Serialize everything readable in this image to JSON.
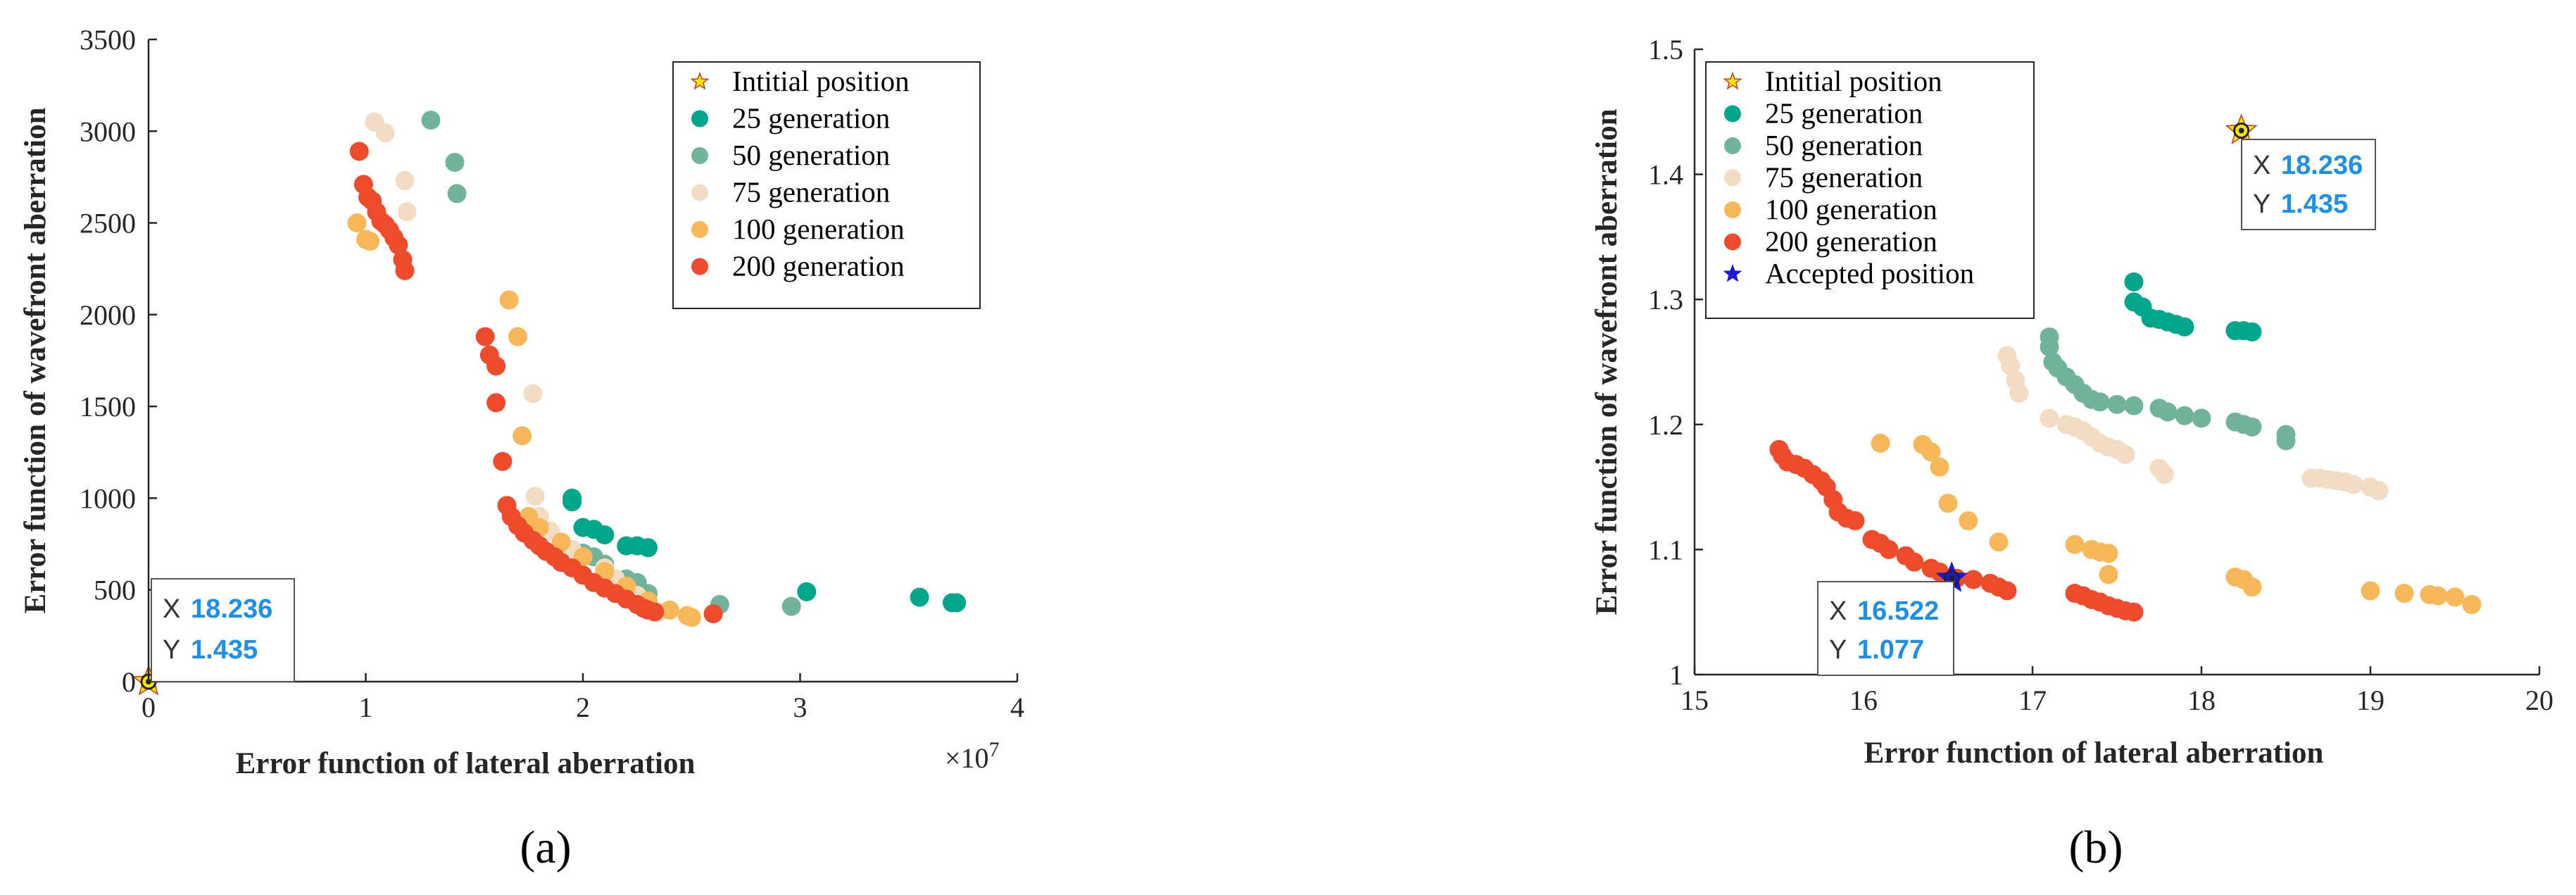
{
  "colors": {
    "initial": "#ffe600",
    "initial_outline": "#c0392b",
    "gen25": "#00a68a",
    "gen50": "#72b49b",
    "gen75": "#f2dcc3",
    "gen100": "#f7b85a",
    "gen200": "#ee4a2c",
    "accepted": "#1a1ad6",
    "datatip_value": "#1e8fe6"
  },
  "chart_data": [
    {
      "panel_label": "(a)",
      "type": "scatter",
      "xlabel": "Error function of lateral aberration",
      "ylabel": "Error function of wavefront aberration",
      "x_exponent_label": "×10",
      "x_exponent_power": "7",
      "xlim": [
        0,
        4
      ],
      "ylim": [
        0,
        3500
      ],
      "xticks": [
        "0",
        "1",
        "2",
        "3",
        "4"
      ],
      "yticks": [
        "0",
        "500",
        "1000",
        "1500",
        "2000",
        "2500",
        "3000",
        "3500"
      ],
      "legend_position": "top-right",
      "datatip": {
        "x_key": "X",
        "x_value": "18.236",
        "y_key": "Y",
        "y_value": "1.435"
      },
      "series": [
        {
          "name": "Intitial position",
          "marker": "star",
          "color_key": "initial",
          "points": [
            [
              0,
              0
            ]
          ]
        },
        {
          "name": "25 generation",
          "marker": "circle",
          "color_key": "gen25",
          "points": [
            [
              1.95,
              1000
            ],
            [
              1.95,
              980
            ],
            [
              2.0,
              840
            ],
            [
              2.05,
              830
            ],
            [
              2.1,
              800
            ],
            [
              2.2,
              740
            ],
            [
              2.25,
              740
            ],
            [
              2.3,
              730
            ],
            [
              3.03,
              490
            ],
            [
              3.55,
              460
            ],
            [
              3.7,
              430
            ],
            [
              3.72,
              430
            ]
          ]
        },
        {
          "name": "50 generation",
          "marker": "circle",
          "color_key": "gen50",
          "points": [
            [
              1.3,
              3060
            ],
            [
              1.41,
              2830
            ],
            [
              1.42,
              2660
            ],
            [
              2.0,
              700
            ],
            [
              2.05,
              680
            ],
            [
              2.1,
              640
            ],
            [
              2.2,
              560
            ],
            [
              2.25,
              540
            ],
            [
              2.3,
              480
            ],
            [
              2.63,
              420
            ],
            [
              2.96,
              410
            ]
          ]
        },
        {
          "name": "75 generation",
          "marker": "circle",
          "color_key": "gen75",
          "points": [
            [
              1.04,
              3050
            ],
            [
              1.09,
              2990
            ],
            [
              1.18,
              2730
            ],
            [
              1.19,
              2560
            ],
            [
              1.77,
              1570
            ],
            [
              1.78,
              1010
            ],
            [
              1.8,
              900
            ],
            [
              1.85,
              820
            ],
            [
              1.9,
              760
            ],
            [
              1.95,
              720
            ],
            [
              2.0,
              680
            ],
            [
              2.1,
              620
            ],
            [
              2.15,
              560
            ],
            [
              2.2,
              520
            ],
            [
              2.25,
              470
            ],
            [
              2.3,
              420
            ],
            [
              2.35,
              380
            ]
          ]
        },
        {
          "name": "100 generation",
          "marker": "circle",
          "color_key": "gen100",
          "points": [
            [
              0.96,
              2500
            ],
            [
              1.0,
              2410
            ],
            [
              1.02,
              2400
            ],
            [
              1.66,
              2080
            ],
            [
              1.7,
              1880
            ],
            [
              1.72,
              1340
            ],
            [
              1.75,
              900
            ],
            [
              1.8,
              840
            ],
            [
              1.9,
              760
            ],
            [
              2.0,
              680
            ],
            [
              2.1,
              600
            ],
            [
              2.2,
              520
            ],
            [
              2.3,
              440
            ],
            [
              2.4,
              390
            ],
            [
              2.48,
              360
            ],
            [
              2.5,
              350
            ]
          ]
        },
        {
          "name": "200 generation",
          "marker": "circle",
          "color_key": "gen200",
          "points": [
            [
              0.97,
              2890
            ],
            [
              0.99,
              2710
            ],
            [
              1.01,
              2640
            ],
            [
              1.03,
              2620
            ],
            [
              1.05,
              2560
            ],
            [
              1.07,
              2510
            ],
            [
              1.09,
              2490
            ],
            [
              1.11,
              2460
            ],
            [
              1.13,
              2420
            ],
            [
              1.15,
              2380
            ],
            [
              1.17,
              2300
            ],
            [
              1.18,
              2240
            ],
            [
              1.55,
              1880
            ],
            [
              1.57,
              1780
            ],
            [
              1.6,
              1720
            ],
            [
              1.6,
              1520
            ],
            [
              1.63,
              1200
            ],
            [
              1.65,
              960
            ],
            [
              1.67,
              900
            ],
            [
              1.7,
              850
            ],
            [
              1.73,
              810
            ],
            [
              1.77,
              770
            ],
            [
              1.8,
              740
            ],
            [
              1.83,
              710
            ],
            [
              1.87,
              680
            ],
            [
              1.9,
              650
            ],
            [
              1.95,
              620
            ],
            [
              2.0,
              580
            ],
            [
              2.05,
              540
            ],
            [
              2.1,
              510
            ],
            [
              2.15,
              480
            ],
            [
              2.2,
              450
            ],
            [
              2.25,
              420
            ],
            [
              2.28,
              400
            ],
            [
              2.3,
              390
            ],
            [
              2.33,
              380
            ],
            [
              2.6,
              370
            ]
          ]
        }
      ]
    },
    {
      "panel_label": "(b)",
      "type": "scatter",
      "xlabel": "Error function of lateral aberration",
      "ylabel": "Error function of wavefront aberration",
      "xlim": [
        15,
        20
      ],
      "ylim": [
        1,
        1.5
      ],
      "xticks": [
        "15",
        "16",
        "17",
        "18",
        "19",
        "20"
      ],
      "yticks": [
        "1",
        "1.1",
        "1.2",
        "1.3",
        "1.4",
        "1.5"
      ],
      "legend_position": "top-left",
      "datatips": [
        {
          "x_key": "X",
          "x_value": "18.236",
          "y_key": "Y",
          "y_value": "1.435"
        },
        {
          "x_key": "X",
          "x_value": "16.522",
          "y_key": "Y",
          "y_value": "1.077"
        }
      ],
      "series": [
        {
          "name": "Intitial position",
          "marker": "star",
          "color_key": "initial",
          "points": [
            [
              18.236,
              1.435
            ]
          ]
        },
        {
          "name": "25 generation",
          "marker": "circle",
          "color_key": "gen25",
          "points": [
            [
              17.6,
              1.314
            ],
            [
              17.6,
              1.298
            ],
            [
              17.65,
              1.294
            ],
            [
              17.7,
              1.285
            ],
            [
              17.75,
              1.284
            ],
            [
              17.8,
              1.282
            ],
            [
              17.85,
              1.28
            ],
            [
              17.9,
              1.278
            ],
            [
              18.2,
              1.275
            ],
            [
              18.25,
              1.275
            ],
            [
              18.3,
              1.274
            ]
          ]
        },
        {
          "name": "50 generation",
          "marker": "circle",
          "color_key": "gen50",
          "points": [
            [
              17.1,
              1.27
            ],
            [
              17.1,
              1.262
            ],
            [
              17.12,
              1.25
            ],
            [
              17.15,
              1.245
            ],
            [
              17.2,
              1.238
            ],
            [
              17.25,
              1.232
            ],
            [
              17.3,
              1.225
            ],
            [
              17.35,
              1.22
            ],
            [
              17.4,
              1.218
            ],
            [
              17.5,
              1.216
            ],
            [
              17.6,
              1.215
            ],
            [
              17.75,
              1.213
            ],
            [
              17.8,
              1.21
            ],
            [
              17.9,
              1.207
            ],
            [
              18.0,
              1.205
            ],
            [
              18.2,
              1.202
            ],
            [
              18.25,
              1.2
            ],
            [
              18.3,
              1.198
            ],
            [
              18.5,
              1.192
            ],
            [
              18.5,
              1.187
            ]
          ]
        },
        {
          "name": "75 generation",
          "marker": "circle",
          "color_key": "gen75",
          "points": [
            [
              16.85,
              1.255
            ],
            [
              16.87,
              1.247
            ],
            [
              16.9,
              1.235
            ],
            [
              16.92,
              1.225
            ],
            [
              17.1,
              1.205
            ],
            [
              17.2,
              1.2
            ],
            [
              17.25,
              1.198
            ],
            [
              17.3,
              1.195
            ],
            [
              17.35,
              1.19
            ],
            [
              17.4,
              1.185
            ],
            [
              17.45,
              1.182
            ],
            [
              17.5,
              1.18
            ],
            [
              17.55,
              1.176
            ],
            [
              17.75,
              1.165
            ],
            [
              17.78,
              1.16
            ],
            [
              18.65,
              1.157
            ],
            [
              18.7,
              1.157
            ],
            [
              18.75,
              1.156
            ],
            [
              18.8,
              1.155
            ],
            [
              18.85,
              1.154
            ],
            [
              18.9,
              1.152
            ],
            [
              19.0,
              1.15
            ],
            [
              19.05,
              1.147
            ]
          ]
        },
        {
          "name": "100 generation",
          "marker": "circle",
          "color_key": "gen100",
          "points": [
            [
              16.1,
              1.185
            ],
            [
              16.35,
              1.184
            ],
            [
              16.4,
              1.178
            ],
            [
              16.45,
              1.166
            ],
            [
              16.5,
              1.137
            ],
            [
              16.62,
              1.123
            ],
            [
              16.8,
              1.106
            ],
            [
              17.25,
              1.104
            ],
            [
              17.35,
              1.1
            ],
            [
              17.4,
              1.098
            ],
            [
              17.45,
              1.097
            ],
            [
              17.45,
              1.08
            ],
            [
              18.2,
              1.078
            ],
            [
              18.25,
              1.076
            ],
            [
              18.3,
              1.07
            ],
            [
              19.0,
              1.067
            ],
            [
              19.2,
              1.065
            ],
            [
              19.35,
              1.064
            ],
            [
              19.4,
              1.063
            ],
            [
              19.5,
              1.062
            ],
            [
              19.6,
              1.056
            ]
          ]
        },
        {
          "name": "200 generation",
          "marker": "circle",
          "color_key": "gen200",
          "points": [
            [
              15.5,
              1.18
            ],
            [
              15.52,
              1.175
            ],
            [
              15.55,
              1.17
            ],
            [
              15.6,
              1.168
            ],
            [
              15.65,
              1.165
            ],
            [
              15.7,
              1.16
            ],
            [
              15.75,
              1.155
            ],
            [
              15.78,
              1.15
            ],
            [
              15.82,
              1.14
            ],
            [
              15.85,
              1.13
            ],
            [
              15.9,
              1.125
            ],
            [
              15.95,
              1.123
            ],
            [
              16.05,
              1.108
            ],
            [
              16.1,
              1.105
            ],
            [
              16.15,
              1.1
            ],
            [
              16.25,
              1.095
            ],
            [
              16.3,
              1.09
            ],
            [
              16.4,
              1.085
            ],
            [
              16.45,
              1.082
            ],
            [
              16.55,
              1.077
            ],
            [
              16.65,
              1.076
            ],
            [
              16.75,
              1.073
            ],
            [
              16.8,
              1.07
            ],
            [
              16.85,
              1.067
            ],
            [
              17.25,
              1.065
            ],
            [
              17.3,
              1.063
            ],
            [
              17.35,
              1.06
            ],
            [
              17.4,
              1.058
            ],
            [
              17.45,
              1.055
            ],
            [
              17.5,
              1.053
            ],
            [
              17.55,
              1.051
            ],
            [
              17.6,
              1.05
            ]
          ]
        },
        {
          "name": "Accepted position",
          "marker": "star",
          "color_key": "accepted",
          "points": [
            [
              16.522,
              1.077
            ]
          ]
        }
      ]
    }
  ]
}
